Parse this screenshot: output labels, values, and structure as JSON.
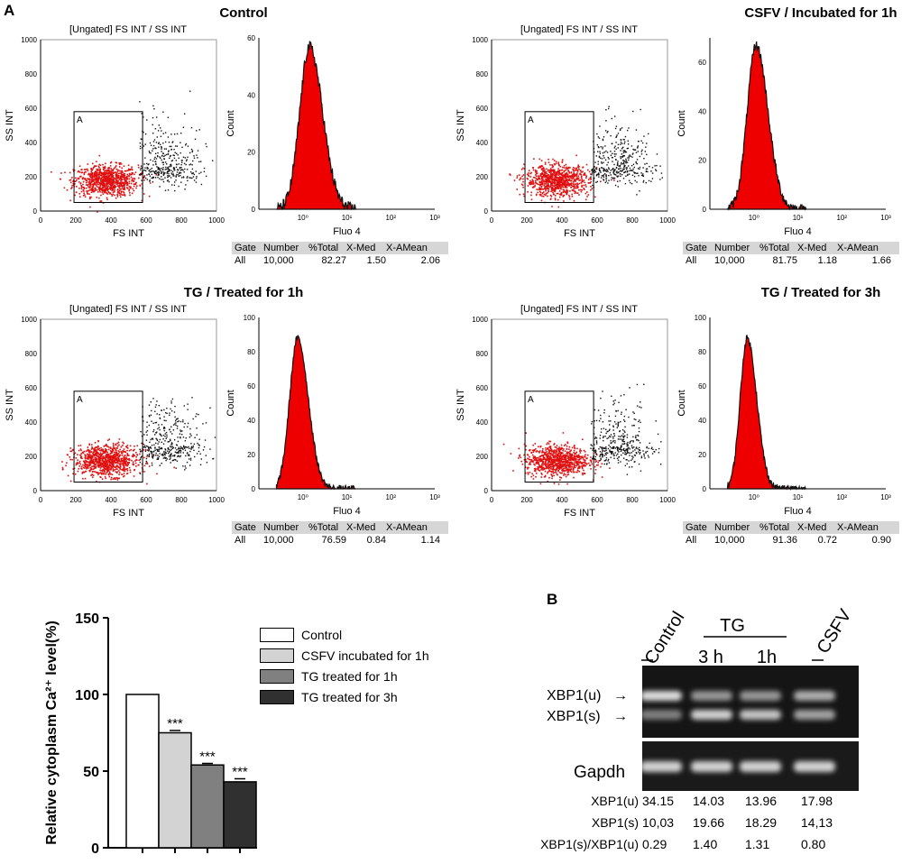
{
  "panel_a_label": "A",
  "panel_b_label": "B",
  "flow": {
    "scatter_title": "[Ungated] FS INT / SS INT",
    "scatter_xlabel": "FS INT",
    "scatter_ylabel": "SS INT",
    "gate_label": "A",
    "scatter_xticks": [
      "0",
      "200",
      "400",
      "600",
      "800",
      "1000"
    ],
    "scatter_yticks": [
      "0",
      "200",
      "400",
      "600",
      "800",
      "1000"
    ],
    "hist_xlabel": "Fluo 4",
    "hist_ylabel": "Count",
    "hist_xticks": [
      "10⁰",
      "10¹",
      "10²",
      "10³"
    ],
    "stats_headers": [
      "Gate",
      "Number",
      "%Total",
      "X-Med",
      "X-AMean"
    ],
    "panels": [
      {
        "title": "Control",
        "hist_yticks": [
          "0",
          "20",
          "40",
          "60"
        ],
        "hist_ymax": 60,
        "stats": {
          "gate": "All",
          "number": "10,000",
          "total": "82.27",
          "xmed": "1.50",
          "xamean": "2.06"
        }
      },
      {
        "title": "CSFV / Incubated for 1h",
        "hist_yticks": [
          "0",
          "20",
          "40",
          "60"
        ],
        "hist_ymax": 70,
        "stats": {
          "gate": "All",
          "number": "10,000",
          "total": "81.75",
          "xmed": "1.18",
          "xamean": "1.66"
        }
      },
      {
        "title": "TG / Treated for 1h",
        "hist_yticks": [
          "0",
          "20",
          "40",
          "60",
          "80",
          "100"
        ],
        "hist_ymax": 100,
        "stats": {
          "gate": "All",
          "number": "10,000",
          "total": "76.59",
          "xmed": "0.84",
          "xamean": "1.14"
        }
      },
      {
        "title": "TG  / Treated for 3h",
        "hist_yticks": [
          "0",
          "20",
          "40",
          "60",
          "80",
          "100"
        ],
        "hist_ymax": 100,
        "stats": {
          "gate": "All",
          "number": "10,000",
          "total": "91.36",
          "xmed": "0.72",
          "xamean": "0.90"
        }
      }
    ]
  },
  "chart_data": {
    "type": "bar",
    "title": "",
    "ylabel": "Relative cytoplasm Ca²⁺ level(%)",
    "xlabel": "",
    "ylim": [
      0,
      150
    ],
    "yticks": [
      "0",
      "50",
      "100",
      "150"
    ],
    "categories": [
      "Control",
      "CSFV incubated for 1h",
      "TG treated for 1h",
      "TG treated for 3h"
    ],
    "values": [
      100,
      75,
      54,
      43
    ],
    "errors": [
      0,
      1.5,
      1,
      2
    ],
    "significance": [
      "",
      "***",
      "***",
      "***"
    ],
    "legend": [
      "Control",
      "CSFV incubated for 1h",
      "TG treated for 1h",
      "TG treated for 3h"
    ],
    "colors": [
      "#ffffff",
      "#d3d3d3",
      "#808080",
      "#303030"
    ]
  },
  "gel": {
    "lane_labels": [
      "Control",
      "3 h",
      "1h",
      "CSFV"
    ],
    "tg_label": "TG",
    "band_labels": [
      "XBP1(u)",
      "XBP1(s)"
    ],
    "gapdh_label": "Gapdh",
    "arrow_glyph": "→",
    "rows": [
      {
        "label": "XBP1(u)",
        "values": [
          "34.15",
          "14.03",
          "13.96",
          "17.98"
        ]
      },
      {
        "label": "XBP1(s)",
        "values": [
          "10,03",
          "19.66",
          "18.29",
          "14,13"
        ]
      },
      {
        "label": "XBP1(s)/XBP1(u)",
        "values": [
          "0.29",
          "1.40",
          "1.31",
          "0.80"
        ]
      }
    ]
  }
}
